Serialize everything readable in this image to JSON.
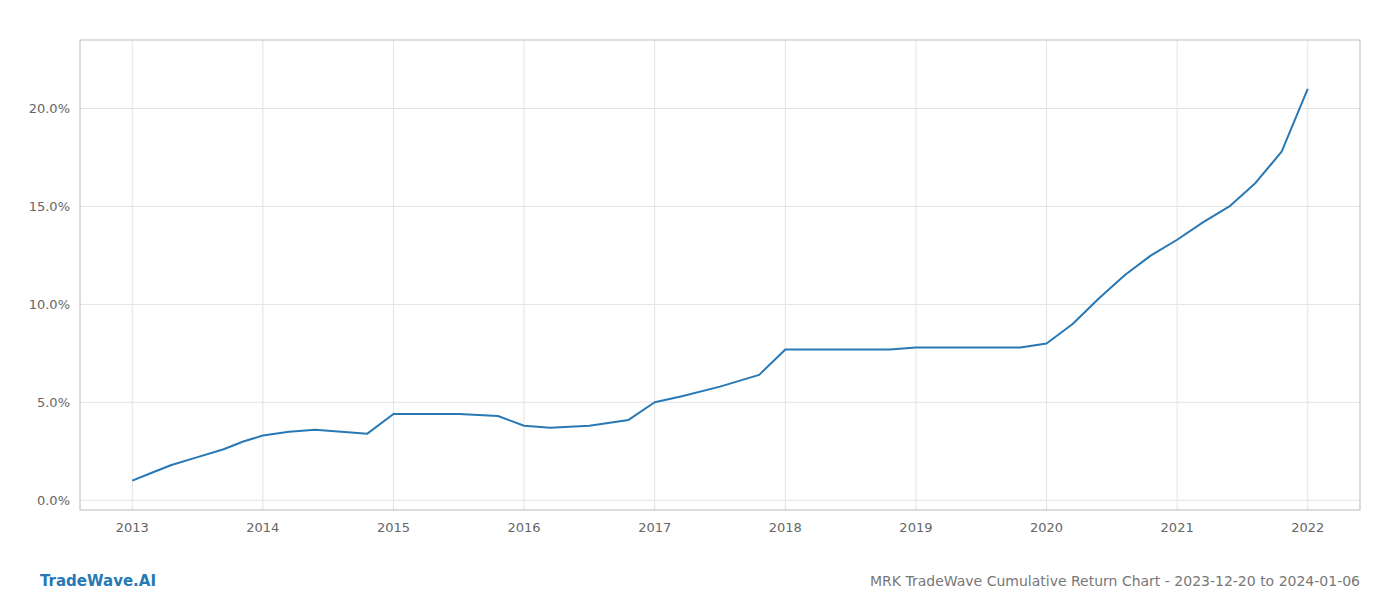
{
  "chart_data": {
    "type": "line",
    "title": "MRK TradeWave Cumulative Return Chart - 2023-12-20 to 2024-01-06",
    "annotations": [
      "TradeWave.AI"
    ],
    "color": "#2878b5",
    "grid": true,
    "x": [
      2013.0,
      2013.15,
      2013.3,
      2013.5,
      2013.7,
      2013.85,
      2014.0,
      2014.2,
      2014.4,
      2014.6,
      2014.8,
      2015.0,
      2015.2,
      2015.5,
      2015.8,
      2016.0,
      2016.2,
      2016.5,
      2016.8,
      2017.0,
      2017.2,
      2017.5,
      2017.8,
      2018.0,
      2018.2,
      2018.4,
      2018.6,
      2018.8,
      2019.0,
      2019.2,
      2019.4,
      2019.5,
      2019.6,
      2019.8,
      2020.0,
      2020.2,
      2020.4,
      2020.6,
      2020.8,
      2021.0,
      2021.2,
      2021.4,
      2021.6,
      2021.8,
      2022.0
    ],
    "values": [
      0.01,
      0.014,
      0.018,
      0.022,
      0.026,
      0.03,
      0.033,
      0.035,
      0.036,
      0.035,
      0.034,
      0.044,
      0.044,
      0.044,
      0.043,
      0.038,
      0.037,
      0.038,
      0.041,
      0.05,
      0.053,
      0.058,
      0.064,
      0.077,
      0.077,
      0.077,
      0.077,
      0.077,
      0.078,
      0.078,
      0.078,
      0.078,
      0.078,
      0.078,
      0.08,
      0.09,
      0.103,
      0.115,
      0.125,
      0.133,
      0.142,
      0.15,
      0.162,
      0.178,
      0.21
    ],
    "xlim": [
      2012.6,
      2022.4
    ],
    "xticks": [
      2013,
      2014,
      2015,
      2016,
      2017,
      2018,
      2019,
      2020,
      2021,
      2022
    ],
    "ylim": [
      -0.005,
      0.235
    ],
    "yticks": [
      {
        "value": 0.0,
        "label": "0.0%"
      },
      {
        "value": 0.05,
        "label": "5.0%"
      },
      {
        "value": 0.1,
        "label": "10.0%"
      },
      {
        "value": 0.15,
        "label": "15.0%"
      },
      {
        "value": 0.2,
        "label": "20.0%"
      }
    ]
  }
}
